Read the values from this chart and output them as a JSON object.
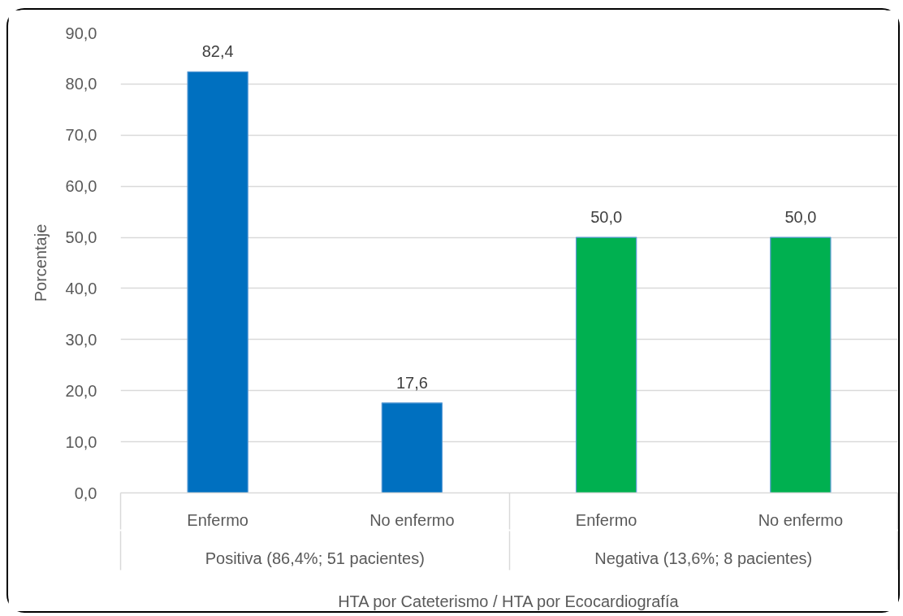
{
  "chart_data": {
    "type": "bar",
    "categories": [
      "Enfermo",
      "No enfermo",
      "Enfermo",
      "No enfermo"
    ],
    "values": [
      82.4,
      17.6,
      50.0,
      50.0
    ],
    "colors": [
      "#0070c0",
      "#0070c0",
      "#00b050",
      "#00b050"
    ],
    "value_labels": [
      "82,4",
      "17,6",
      "50,0",
      "50,0"
    ],
    "xlabel": "HTA por Cateterismo / HTA por Ecocardiografía",
    "ylabel": "Porcentaje",
    "annotations": [
      "Positiva (86,4%; 51 pacientes)",
      "Negativa (13,6%; 8 pacientes)"
    ],
    "ylim": [
      0,
      90
    ],
    "yticks": [
      {
        "value": 0,
        "label": "0,0"
      },
      {
        "value": 10,
        "label": "10,0"
      },
      {
        "value": 20,
        "label": "20,0"
      },
      {
        "value": 30,
        "label": "30,0"
      },
      {
        "value": 40,
        "label": "40,0"
      },
      {
        "value": 50,
        "label": "50,0"
      },
      {
        "value": 60,
        "label": "60,0"
      },
      {
        "value": 70,
        "label": "70,0"
      },
      {
        "value": 80,
        "label": "80,0"
      },
      {
        "value": 90,
        "label": "90,0"
      }
    ],
    "grid": "y"
  }
}
